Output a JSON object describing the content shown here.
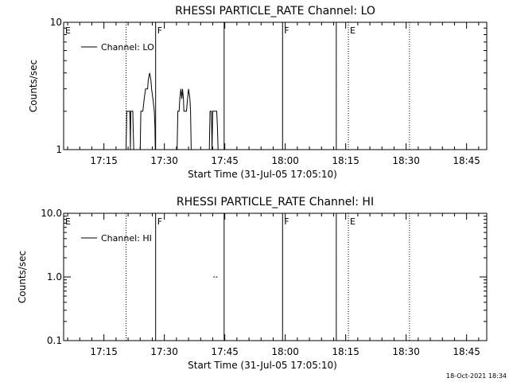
{
  "footer": {
    "date": "18-Oct-2021 18:34"
  },
  "chart_data": [
    {
      "type": "line",
      "title": "RHESSI PARTICLE_RATE Channel: LO",
      "xlabel": "Start Time (31-Jul-05 17:05:10)",
      "ylabel": "Counts/sec",
      "xlim": [
        0,
        6300
      ],
      "ylim": [
        1,
        10
      ],
      "yscale": "log",
      "xtick_values": [
        600,
        1500,
        2400,
        3300,
        4200,
        5100,
        6000
      ],
      "xtick_labels": [
        "17:15",
        "17:30",
        "17:45",
        "18:00",
        "18:15",
        "18:30",
        "18:45"
      ],
      "ytick_values": [
        1,
        10
      ],
      "ytick_labels": [
        "1",
        "10"
      ],
      "legend": {
        "label": "Channel: LO",
        "position": "top-left"
      },
      "markers": [
        {
          "x": 0,
          "style": "none",
          "label": "E"
        },
        {
          "x": 930,
          "style": "dotted",
          "label": ""
        },
        {
          "x": 1370,
          "style": "solid",
          "label": "F"
        },
        {
          "x": 2390,
          "style": "solid",
          "label": ""
        },
        {
          "x": 3260,
          "style": "solid",
          "label": "F"
        },
        {
          "x": 4060,
          "style": "solid",
          "label": ""
        },
        {
          "x": 4240,
          "style": "dotted",
          "label": "E"
        },
        {
          "x": 5150,
          "style": "dotted",
          "label": ""
        }
      ],
      "series": [
        {
          "segments": [
            [
              [
                930,
                1
              ],
              [
                940,
                2
              ],
              [
                985,
                2
              ],
              [
                990,
                1.5
              ],
              [
                995,
                1
              ],
              [
                1000,
                2
              ],
              [
                1030,
                2
              ],
              [
                1035,
                1.5
              ],
              [
                1045,
                1
              ],
              [
                1050,
                1
              ]
            ],
            [
              [
                1140,
                1
              ],
              [
                1150,
                2
              ],
              [
                1180,
                2
              ],
              [
                1200,
                2.5
              ],
              [
                1220,
                3
              ],
              [
                1250,
                3
              ],
              [
                1260,
                3.5
              ],
              [
                1280,
                4
              ],
              [
                1300,
                3.5
              ],
              [
                1310,
                3
              ],
              [
                1330,
                2.5
              ],
              [
                1350,
                2
              ],
              [
                1360,
                1.5
              ],
              [
                1365,
                1
              ]
            ],
            [
              [
                1690,
                1
              ],
              [
                1700,
                2
              ],
              [
                1720,
                2
              ],
              [
                1730,
                2.5
              ],
              [
                1745,
                3
              ],
              [
                1760,
                2.5
              ],
              [
                1770,
                3
              ],
              [
                1785,
                2.5
              ],
              [
                1790,
                2
              ],
              [
                1830,
                2
              ],
              [
                1845,
                2.5
              ],
              [
                1860,
                3
              ],
              [
                1880,
                2.5
              ],
              [
                1890,
                2
              ],
              [
                1900,
                1
              ]
            ],
            [
              [
                2170,
                1
              ],
              [
                2180,
                2
              ],
              [
                2200,
                2
              ],
              [
                2205,
                1.5
              ],
              [
                2210,
                1
              ],
              [
                2220,
                2
              ],
              [
                2280,
                2
              ],
              [
                2290,
                1.5
              ],
              [
                2300,
                1
              ]
            ]
          ]
        }
      ]
    },
    {
      "type": "line",
      "title": "RHESSI PARTICLE_RATE Channel: HI",
      "xlabel": "Start Time (31-Jul-05 17:05:10)",
      "ylabel": "Counts/sec",
      "xlim": [
        0,
        6300
      ],
      "ylim": [
        0.1,
        10
      ],
      "yscale": "log",
      "xtick_values": [
        600,
        1500,
        2400,
        3300,
        4200,
        5100,
        6000
      ],
      "xtick_labels": [
        "17:15",
        "17:30",
        "17:45",
        "18:00",
        "18:15",
        "18:30",
        "18:45"
      ],
      "ytick_values": [
        0.1,
        1,
        10
      ],
      "ytick_labels": [
        "0.1",
        "1.0",
        "10.0"
      ],
      "legend": {
        "label": "Channel: HI",
        "position": "top-left"
      },
      "markers": [
        {
          "x": 0,
          "style": "none",
          "label": "E"
        },
        {
          "x": 930,
          "style": "dotted",
          "label": ""
        },
        {
          "x": 1370,
          "style": "solid",
          "label": "F"
        },
        {
          "x": 2390,
          "style": "solid",
          "label": ""
        },
        {
          "x": 3260,
          "style": "solid",
          "label": "F"
        },
        {
          "x": 4060,
          "style": "solid",
          "label": ""
        },
        {
          "x": 4240,
          "style": "dotted",
          "label": "E"
        },
        {
          "x": 5150,
          "style": "dotted",
          "label": ""
        }
      ],
      "series": [
        {
          "segments": [
            [
              [
                2230,
                1
              ],
              [
                2250,
                1
              ]
            ],
            [
              [
                2265,
                1
              ],
              [
                2290,
                1
              ]
            ]
          ]
        }
      ]
    }
  ]
}
